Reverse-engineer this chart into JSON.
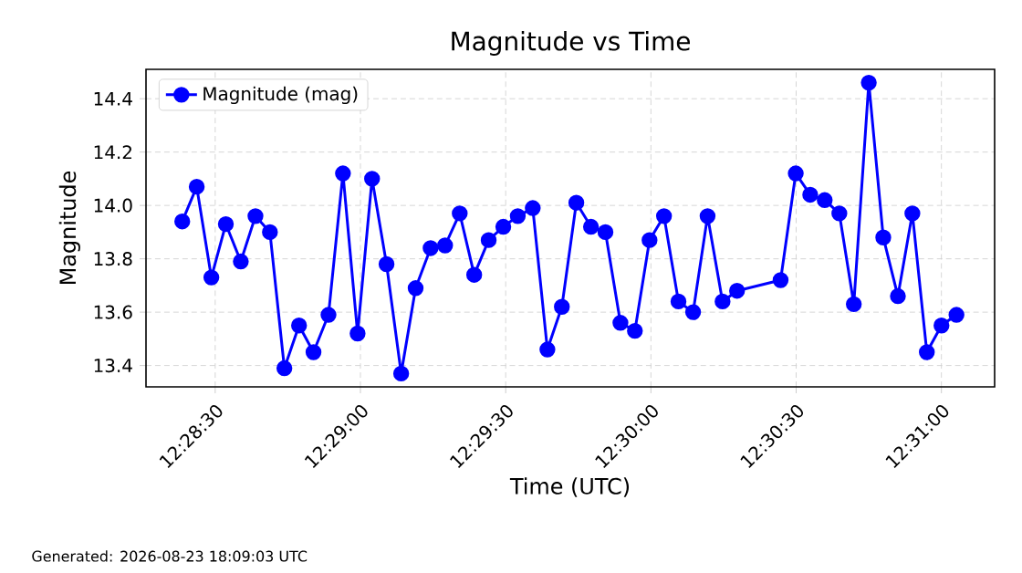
{
  "chart_data": {
    "type": "line",
    "title": "Magnitude vs Time",
    "xlabel": "Time (UTC)",
    "ylabel": "Magnitude",
    "x": [
      12.47311,
      12.47394,
      12.47478,
      12.47561,
      12.47647,
      12.47731,
      12.47814,
      12.47897,
      12.47981,
      12.48064,
      12.4815,
      12.48233,
      12.48317,
      12.484,
      12.48483,
      12.48567,
      12.4865,
      12.48736,
      12.48819,
      12.48903,
      12.48986,
      12.49069,
      12.49153,
      12.49236,
      12.49322,
      12.49406,
      12.49489,
      12.49572,
      12.49656,
      12.49739,
      12.49825,
      12.49908,
      12.49992,
      12.50075,
      12.50158,
      12.50242,
      12.50325,
      12.50411,
      12.50494,
      12.50744,
      12.50831,
      12.50914,
      12.50997,
      12.51081,
      12.51164,
      12.5125,
      12.51333,
      12.51417,
      12.515,
      12.51583,
      12.51667,
      12.51753
    ],
    "series": [
      {
        "name": "Magnitude (mag)",
        "color": "#0000ff",
        "values": [
          13.94,
          14.07,
          13.73,
          13.93,
          13.79,
          13.96,
          13.9,
          13.39,
          13.55,
          13.45,
          13.59,
          14.12,
          13.52,
          14.1,
          13.78,
          13.37,
          13.69,
          13.84,
          13.85,
          13.97,
          13.74,
          13.87,
          13.92,
          13.96,
          13.99,
          13.46,
          13.62,
          14.01,
          13.92,
          13.9,
          13.56,
          13.53,
          13.87,
          13.96,
          13.64,
          13.6,
          13.96,
          13.64,
          13.68,
          13.72,
          14.12,
          14.04,
          14.02,
          13.97,
          13.63,
          14.46,
          13.88,
          13.66,
          13.97,
          13.45,
          13.55,
          13.59
        ]
      }
    ],
    "xlim": [
      12.47103,
      12.51972
    ],
    "xticks": [
      {
        "value": 12.475,
        "label": "12:28:30"
      },
      {
        "value": 12.483333,
        "label": "12:29:00"
      },
      {
        "value": 12.491667,
        "label": "12:29:30"
      },
      {
        "value": 12.5,
        "label": "12:30:00"
      },
      {
        "value": 12.508333,
        "label": "12:30:30"
      },
      {
        "value": 12.516667,
        "label": "12:31:00"
      }
    ],
    "ylim": [
      13.32,
      14.51
    ],
    "yticks": [
      13.4,
      13.6,
      13.8,
      {
        "value": 14,
        "label": "14.0"
      },
      14.2,
      14.4
    ],
    "grid": true,
    "legend": "top left",
    "marker": "circle",
    "line_style": "solid",
    "annotations": [
      "Generated: 2026-08-23 18:09:03 UTC"
    ]
  }
}
